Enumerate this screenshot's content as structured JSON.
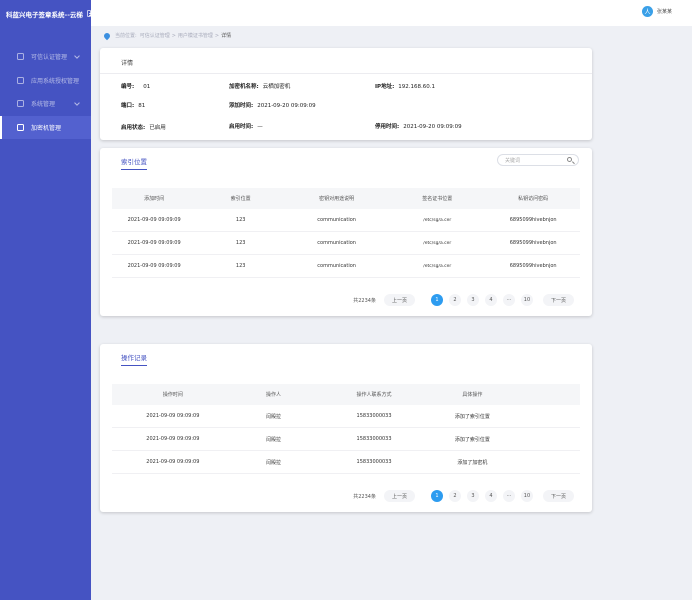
{
  "app": {
    "title": "科蓝兴电子签章系统--云梯"
  },
  "sidebar": {
    "items": [
      {
        "label": "可信认证管理",
        "has_chevron": true,
        "active": false
      },
      {
        "label": "应用系统授权管理",
        "has_chevron": false,
        "active": false
      },
      {
        "label": "系统管理",
        "has_chevron": true,
        "active": false
      },
      {
        "label": "加密机管理",
        "has_chevron": false,
        "active": true
      }
    ]
  },
  "user": {
    "name": "张某某",
    "avatar_text": "人"
  },
  "breadcrumb": {
    "items": [
      "当前位置:",
      "可信认证管理",
      "用户模证书管理",
      "详情"
    ]
  },
  "detail": {
    "title": "详情",
    "fields": {
      "code_label": "编号:",
      "code_value": "01",
      "name_label": "加密机名称:",
      "name_value": "云栖加密机",
      "ip_label": "IP地址:",
      "ip_value": "192.168.60.1",
      "port_label": "端口:",
      "port_value": "81",
      "add_time_label": "添加时间:",
      "add_time_value": "2021-09-20 09:09:09",
      "status_label": "启用状态:",
      "status_value": "已启用",
      "enable_time_label": "启用时间:",
      "enable_time_value": "—",
      "disable_time_label": "停用时间:",
      "disable_time_value": "2021-09-20 09:09:09"
    }
  },
  "index_panel": {
    "tab": "索引位置",
    "search_placeholder": "关键词",
    "columns": [
      "添加时间",
      "索引位置",
      "密钥对用途说明",
      "签名证书位置",
      "私钥访问密码"
    ],
    "rows": [
      [
        "2021-09-09  09:09:09",
        "123",
        "communication",
        "/etc/sg/a.cer",
        "6895099hivebnjon"
      ],
      [
        "2021-09-09  09:09:09",
        "123",
        "communication",
        "/etc/sg/a.cer",
        "6895099hivebnjon"
      ],
      [
        "2021-09-09  09:09:09",
        "123",
        "communication",
        "/etc/sg/a.cer",
        "6895099hivebnjon"
      ]
    ],
    "pager": {
      "total": "共2234条",
      "prev": "上一页",
      "pages": [
        "1",
        "2",
        "3",
        "4",
        "···",
        "10"
      ],
      "current": "1",
      "next": "下一页"
    }
  },
  "ops_panel": {
    "tab": "操作记录",
    "columns": [
      "操作时间",
      "操作人",
      "操作人联系方式",
      "具体操作"
    ],
    "rows": [
      [
        "2021-09-09  09:09:09",
        "闫殿拉",
        "15833000033",
        "添加了索引位置"
      ],
      [
        "2021-09-09  09:09:09",
        "闫殿拉",
        "15833000033",
        "添加了索引位置"
      ],
      [
        "2021-09-09  09:09:09",
        "闫殿拉",
        "15833000033",
        "添加了加密机"
      ]
    ],
    "pager": {
      "total": "共2234条",
      "prev": "上一页",
      "pages": [
        "1",
        "2",
        "3",
        "4",
        "···",
        "10"
      ],
      "current": "1",
      "next": "下一页"
    }
  },
  "colors": {
    "sidebar": "#4553c2",
    "accent": "#2d9cf0",
    "page_bg": "#eef0f5"
  }
}
